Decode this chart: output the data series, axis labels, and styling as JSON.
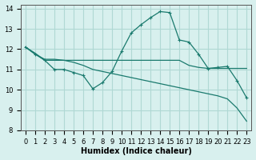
{
  "line1": {
    "x": [
      0,
      1,
      2,
      3,
      4,
      5,
      6,
      7,
      8,
      9,
      10,
      11,
      12,
      13,
      14,
      15,
      16,
      17,
      18,
      19,
      20,
      21,
      22,
      23
    ],
    "y": [
      12.1,
      11.75,
      11.45,
      11.0,
      11.0,
      10.85,
      10.7,
      10.05,
      10.35,
      10.9,
      11.9,
      12.8,
      13.2,
      13.55,
      13.85,
      13.8,
      12.45,
      12.35,
      11.75,
      11.05,
      11.1,
      11.15,
      10.45,
      9.6
    ],
    "color": "#1a7a6e",
    "marker": "+"
  },
  "line2": {
    "x": [
      0,
      1,
      2,
      3,
      4,
      5,
      6,
      7,
      8,
      9,
      10,
      11,
      12,
      13,
      14,
      15,
      16,
      17,
      18,
      19,
      20,
      21,
      22,
      23
    ],
    "y": [
      12.1,
      11.8,
      11.45,
      11.45,
      11.45,
      11.45,
      11.45,
      11.45,
      11.45,
      11.45,
      11.45,
      11.45,
      11.45,
      11.45,
      11.45,
      11.45,
      11.45,
      11.2,
      11.1,
      11.05,
      11.05,
      11.05,
      11.05,
      11.05
    ],
    "color": "#1a7a6e",
    "marker": null
  },
  "line3": {
    "x": [
      0,
      1,
      2,
      3,
      4,
      5,
      6,
      7,
      8,
      9,
      10,
      11,
      12,
      13,
      14,
      15,
      16,
      17,
      18,
      19,
      20,
      21,
      22,
      23
    ],
    "y": [
      12.1,
      11.75,
      11.5,
      11.5,
      11.45,
      11.35,
      11.2,
      11.0,
      10.9,
      10.8,
      10.7,
      10.6,
      10.5,
      10.4,
      10.3,
      10.2,
      10.1,
      10.0,
      9.9,
      9.8,
      9.7,
      9.55,
      9.1,
      8.45
    ],
    "color": "#1a7a6e",
    "marker": null
  },
  "xlabel": "Humidex (Indice chaleur)",
  "ylabel": "",
  "xlim": [
    -0.5,
    23.5
  ],
  "ylim": [
    8,
    14.2
  ],
  "yticks": [
    8,
    9,
    10,
    11,
    12,
    13,
    14
  ],
  "xticks": [
    0,
    1,
    2,
    3,
    4,
    5,
    6,
    7,
    8,
    9,
    10,
    11,
    12,
    13,
    14,
    15,
    16,
    17,
    18,
    19,
    20,
    21,
    22,
    23
  ],
  "bg_color": "#d8f0ee",
  "grid_color": "#b0d8d4",
  "line_color": "#1a7a6e",
  "title_fontsize": 7,
  "label_fontsize": 7,
  "tick_fontsize": 6
}
